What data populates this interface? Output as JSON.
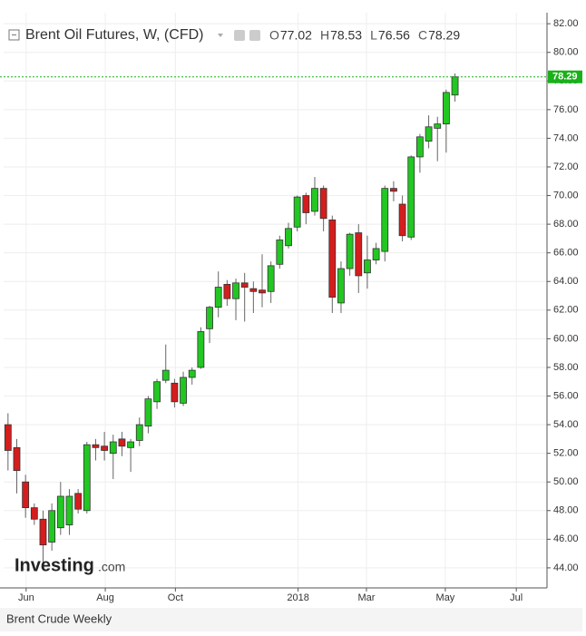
{
  "chart_data": {
    "type": "candlestick",
    "title": "Brent Oil Futures, W, (CFD)",
    "ohlc_legend": [
      {
        "label": "O",
        "value": 77.02
      },
      {
        "label": "H",
        "value": 78.53
      },
      {
        "label": "L",
        "value": 76.56
      },
      {
        "label": "C",
        "value": 78.29
      }
    ],
    "watermark": [
      "Investing",
      ".com"
    ],
    "caption": "Brent Crude Weekly",
    "up_color": "#22c722",
    "down_color": "#d51d1d",
    "last_price": 78.29,
    "last_price_color": "#19b119",
    "grid": true,
    "open": [
      54.0,
      52.4,
      50.0,
      48.2,
      47.4,
      45.8,
      46.8,
      47.0,
      49.2,
      48.0,
      52.6,
      52.5,
      52.0,
      53.0,
      52.4,
      52.9,
      53.9,
      55.6,
      57.1,
      56.9,
      55.5,
      57.3,
      58.0,
      60.7,
      62.2,
      63.8,
      62.8,
      63.9,
      63.5,
      63.4,
      63.3,
      65.2,
      66.5,
      67.8,
      70.0,
      68.9,
      70.5,
      68.3,
      62.5,
      64.9,
      67.4,
      64.6,
      65.5,
      66.1,
      70.5,
      69.4,
      67.1,
      72.7,
      73.8,
      74.7,
      75.0,
      77.02
    ],
    "high": [
      54.8,
      53.0,
      50.5,
      48.5,
      48.0,
      48.5,
      50.0,
      49.5,
      49.5,
      52.8,
      53.0,
      53.5,
      53.3,
      53.5,
      53.0,
      54.5,
      56.0,
      57.2,
      59.6,
      57.2,
      57.7,
      58.0,
      60.8,
      62.3,
      64.7,
      64.1,
      64.2,
      64.6,
      64.0,
      65.9,
      65.4,
      67.2,
      68.1,
      70.0,
      70.2,
      71.3,
      70.7,
      68.6,
      65.4,
      67.4,
      68.0,
      67.2,
      66.7,
      70.7,
      71.0,
      70.0,
      72.8,
      74.3,
      75.6,
      75.5,
      77.4,
      78.53
    ],
    "low": [
      50.8,
      49.2,
      47.5,
      47.0,
      44.3,
      45.2,
      46.3,
      46.3,
      47.8,
      47.8,
      51.5,
      51.5,
      50.2,
      51.8,
      50.7,
      52.5,
      53.4,
      55.1,
      56.9,
      55.2,
      55.3,
      56.8,
      57.9,
      59.7,
      61.5,
      62.3,
      61.3,
      61.2,
      61.8,
      62.2,
      62.5,
      64.9,
      66.3,
      67.5,
      68.0,
      68.6,
      67.5,
      61.8,
      61.8,
      64.4,
      63.2,
      63.5,
      65.2,
      65.4,
      69.6,
      66.8,
      66.9,
      71.6,
      73.3,
      72.4,
      73.0,
      76.56
    ],
    "close": [
      52.2,
      50.8,
      48.2,
      47.4,
      45.6,
      48.0,
      49.0,
      49.0,
      48.1,
      52.6,
      52.4,
      52.2,
      52.8,
      52.5,
      52.8,
      54.0,
      55.8,
      57.0,
      57.8,
      55.6,
      57.3,
      57.8,
      60.5,
      62.2,
      63.6,
      62.8,
      63.9,
      63.6,
      63.3,
      63.2,
      65.1,
      66.9,
      67.7,
      69.9,
      68.8,
      70.5,
      68.4,
      62.9,
      64.9,
      67.3,
      64.4,
      65.5,
      66.3,
      70.5,
      70.3,
      67.2,
      72.7,
      74.1,
      74.8,
      75.0,
      77.2,
      78.29
    ],
    "xlim": [
      -0.5,
      61.5
    ],
    "xticks": [
      {
        "value": 2.07,
        "label": "Jun"
      },
      {
        "value": 11.1,
        "label": "Aug"
      },
      {
        "value": 19.1,
        "label": "Oct"
      },
      {
        "value": 33.1,
        "label": "2018"
      },
      {
        "value": 40.9,
        "label": "Mar"
      },
      {
        "value": 49.9,
        "label": "May"
      },
      {
        "value": 58.0,
        "label": "Jul"
      }
    ],
    "ylim": [
      42.6,
      83.15
    ],
    "yticks": [
      {
        "value": 44,
        "label": "44.00"
      },
      {
        "value": 46,
        "label": "46.00"
      },
      {
        "value": 48,
        "label": "48.00"
      },
      {
        "value": 50,
        "label": "50.00"
      },
      {
        "value": 52,
        "label": "52.00"
      },
      {
        "value": 54,
        "label": "54.00"
      },
      {
        "value": 56,
        "label": "56.00"
      },
      {
        "value": 58,
        "label": "58.00"
      },
      {
        "value": 60,
        "label": "60.00"
      },
      {
        "value": 62,
        "label": "62.00"
      },
      {
        "value": 64,
        "label": "64.00"
      },
      {
        "value": 66,
        "label": "66.00"
      },
      {
        "value": 68,
        "label": "68.00"
      },
      {
        "value": 70,
        "label": "70.00"
      },
      {
        "value": 72,
        "label": "72.00"
      },
      {
        "value": 74,
        "label": "74.00"
      },
      {
        "value": 76,
        "label": "76.00"
      },
      {
        "value": 78,
        "label": "78.00"
      },
      {
        "value": 80,
        "label": "80.00"
      },
      {
        "value": 82,
        "label": "82.00"
      }
    ]
  }
}
